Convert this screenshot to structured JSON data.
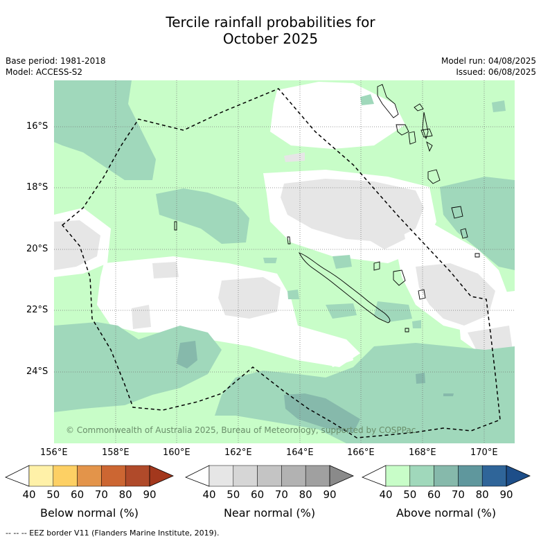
{
  "title_line1": "Tercile rainfall probabilities for",
  "title_line2": "October 2025",
  "base_period": "Base period: 1981-2018",
  "model": "Model: ACCESS-S2",
  "model_run": "Model run: 04/08/2025",
  "issued": "Issued: 06/08/2025",
  "copyright": "© Commonwealth of Australia 2025, Bureau of Meteorology, supported by COSPPac",
  "lat_labels": [
    "16°S",
    "18°S",
    "20°S",
    "22°S",
    "24°S"
  ],
  "lon_labels": [
    "156°E",
    "158°E",
    "160°E",
    "162°E",
    "164°E",
    "166°E",
    "168°E",
    "170°E"
  ],
  "colorbars": [
    {
      "label": "Below normal (%)",
      "ticks": [
        "40",
        "50",
        "60",
        "70",
        "80",
        "90"
      ],
      "colors": [
        "#fff1a8",
        "#fdd064",
        "#e3944a",
        "#cc6632",
        "#b04a2a",
        "#a3381d"
      ]
    },
    {
      "label": "Near normal (%)",
      "ticks": [
        "40",
        "50",
        "60",
        "70",
        "80",
        "90"
      ],
      "colors": [
        "#e6e6e6",
        "#d6d6d6",
        "#c4c4c4",
        "#b2b2b2",
        "#a0a0a0",
        "#8a8a8a"
      ]
    },
    {
      "label": "Above normal (%)",
      "ticks": [
        "40",
        "50",
        "60",
        "70",
        "80",
        "90"
      ],
      "colors": [
        "#c8fdc8",
        "#a0d8bb",
        "#86b9ab",
        "#5f979d",
        "#2f6599",
        "#1d4e89"
      ]
    }
  ],
  "footer_note": "--  --  -- EEZ border V11 (Flanders Marine Institute, 2019)."
}
